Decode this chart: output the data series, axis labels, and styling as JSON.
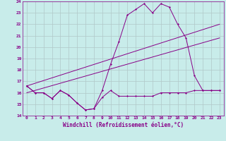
{
  "xlabel": "Windchill (Refroidissement éolien,°C)",
  "bg_color": "#c8ecea",
  "grid_color": "#b0c8c8",
  "line_color": "#880088",
  "xlim": [
    -0.5,
    23.5
  ],
  "ylim": [
    14,
    24
  ],
  "yticks": [
    14,
    15,
    16,
    17,
    18,
    19,
    20,
    21,
    22,
    23,
    24
  ],
  "xticks": [
    0,
    1,
    2,
    3,
    4,
    5,
    6,
    7,
    8,
    9,
    10,
    11,
    12,
    13,
    14,
    15,
    16,
    17,
    18,
    19,
    20,
    21,
    22,
    23
  ],
  "series1_x": [
    0,
    1,
    2,
    3,
    4,
    5,
    6,
    7,
    8,
    9,
    10,
    11,
    12,
    13,
    14,
    15,
    16,
    17,
    18,
    19,
    20,
    21,
    22,
    23
  ],
  "series1_y": [
    16.6,
    16.0,
    16.0,
    15.5,
    16.2,
    15.8,
    15.1,
    14.5,
    14.6,
    15.6,
    16.2,
    15.7,
    15.7,
    15.7,
    15.7,
    15.7,
    16.0,
    16.0,
    16.0,
    16.0,
    16.2,
    16.2,
    16.2,
    16.2
  ],
  "series2_x": [
    0,
    1,
    2,
    3,
    4,
    5,
    6,
    7,
    8,
    9,
    10,
    11,
    12,
    13,
    14,
    15,
    16,
    17,
    18,
    19,
    20,
    21,
    22,
    23
  ],
  "series2_y": [
    16.6,
    16.0,
    16.0,
    15.5,
    16.2,
    15.8,
    15.1,
    14.5,
    14.6,
    16.2,
    18.5,
    20.5,
    22.8,
    23.3,
    23.8,
    23.0,
    23.8,
    23.5,
    22.0,
    20.8,
    17.5,
    16.2,
    16.2,
    16.2
  ],
  "series3_x": [
    0,
    23
  ],
  "series3_y": [
    16.6,
    22.0
  ],
  "series4_x": [
    0,
    23
  ],
  "series4_y": [
    16.0,
    20.8
  ]
}
